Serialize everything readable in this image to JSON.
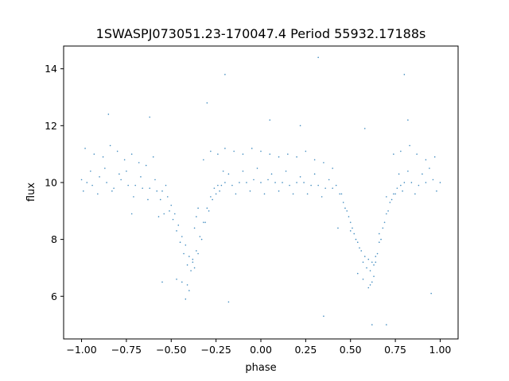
{
  "chart_data": {
    "type": "scatter",
    "title": "1SWASPJ073051.23-170047.4 Period 55932.17188s",
    "xlabel": "phase",
    "ylabel": "flux",
    "xlim": [
      -1.1,
      1.1
    ],
    "ylim": [
      4.5,
      14.8
    ],
    "xticks": [
      {
        "value": -1.0,
        "label": "−1.00"
      },
      {
        "value": -0.75,
        "label": "−0.75"
      },
      {
        "value": -0.5,
        "label": "−0.50"
      },
      {
        "value": -0.25,
        "label": "−0.25"
      },
      {
        "value": 0.0,
        "label": "0.00"
      },
      {
        "value": 0.25,
        "label": "0.25"
      },
      {
        "value": 0.5,
        "label": "0.50"
      },
      {
        "value": 0.75,
        "label": "0.75"
      },
      {
        "value": 1.0,
        "label": "1.00"
      }
    ],
    "yticks": [
      {
        "value": 6,
        "label": "6"
      },
      {
        "value": 8,
        "label": "8"
      },
      {
        "value": 10,
        "label": "10"
      },
      {
        "value": 12,
        "label": "12"
      },
      {
        "value": 14,
        "label": "14"
      }
    ],
    "grid": false,
    "marker_color": "#1f77b4",
    "series": [
      {
        "x": [
          -1.0,
          -0.97,
          -0.94,
          -0.9,
          -0.86,
          -0.82,
          -0.78,
          -0.74,
          -0.7,
          -0.66,
          -0.62,
          -0.58,
          -0.55,
          -0.52,
          -0.5,
          -0.48,
          -0.46,
          -0.44,
          -0.42,
          -0.4,
          -0.38,
          -0.36,
          -0.34,
          -0.32,
          -0.3,
          -0.28,
          -0.26,
          -0.24,
          -0.22,
          -0.2,
          -0.16,
          -0.12,
          -0.08,
          -0.04,
          0.0,
          0.04,
          0.08,
          0.12,
          0.16,
          0.2,
          0.24,
          0.28,
          0.32,
          0.36,
          0.4,
          0.44,
          0.46,
          0.48,
          0.5,
          0.52,
          0.54,
          0.56,
          0.58,
          0.6,
          0.62,
          0.64,
          0.66,
          0.68,
          0.7,
          0.72,
          0.74,
          0.76,
          0.78,
          0.8,
          0.84,
          0.88,
          0.92,
          0.96,
          1.0,
          -0.99,
          -0.95,
          -0.91,
          -0.87,
          -0.83,
          -0.79,
          -0.75,
          -0.71,
          -0.67,
          -0.63,
          -0.59,
          -0.56,
          -0.53,
          -0.51,
          -0.49,
          -0.47,
          -0.45,
          -0.43,
          -0.41,
          -0.39,
          -0.37,
          -0.35,
          -0.33,
          -0.31,
          -0.29,
          -0.27,
          -0.25,
          -0.23,
          -0.21,
          -0.18,
          -0.14,
          -0.1,
          -0.06,
          -0.02,
          0.02,
          0.06,
          0.1,
          0.14,
          0.18,
          0.22,
          0.26,
          0.3,
          0.34,
          0.38,
          0.42,
          0.45,
          0.47,
          0.49,
          0.51,
          0.53,
          0.55,
          0.57,
          0.59,
          0.61,
          0.63,
          0.65,
          0.67,
          0.69,
          0.71,
          0.73,
          0.75,
          0.77,
          0.79,
          0.82,
          0.86,
          0.9,
          0.94,
          0.98,
          -0.98,
          -0.93,
          -0.88,
          -0.84,
          -0.8,
          -0.76,
          -0.72,
          -0.68,
          -0.64,
          -0.6,
          -0.57,
          -0.54,
          -0.47,
          -0.44,
          -0.41,
          -0.4,
          -0.38,
          -0.37,
          -0.36,
          -0.35,
          -0.32,
          -0.28,
          -0.24,
          -0.2,
          -0.15,
          -0.1,
          -0.05,
          0.0,
          0.05,
          0.1,
          0.15,
          0.2,
          0.25,
          0.3,
          0.35,
          0.4,
          0.43,
          0.5,
          0.54,
          0.57,
          0.6,
          0.61,
          0.62,
          0.63,
          0.64,
          0.66,
          0.7,
          0.74,
          0.78,
          0.83,
          0.87,
          0.92,
          0.97,
          -0.85,
          -0.62,
          -0.55,
          -0.3,
          -0.18,
          0.05,
          0.22,
          0.35,
          0.58,
          0.7,
          0.82,
          0.95,
          -0.72,
          0.32,
          -0.2,
          0.8,
          -0.42,
          0.62
        ],
        "y": [
          10.1,
          10.0,
          9.9,
          10.2,
          10.0,
          9.8,
          10.1,
          9.9,
          9.9,
          9.8,
          9.8,
          9.7,
          9.7,
          9.5,
          9.2,
          8.9,
          8.5,
          8.1,
          7.8,
          7.4,
          7.3,
          7.6,
          8.1,
          8.6,
          9.1,
          9.5,
          9.8,
          9.9,
          9.9,
          10.0,
          9.9,
          10.0,
          10.0,
          10.1,
          10.0,
          10.1,
          10.0,
          10.0,
          9.9,
          10.0,
          10.0,
          9.9,
          9.9,
          9.8,
          9.8,
          9.6,
          9.3,
          9.0,
          8.6,
          8.2,
          7.9,
          7.6,
          7.4,
          7.3,
          7.2,
          7.4,
          7.9,
          8.4,
          8.9,
          9.3,
          9.6,
          9.8,
          9.9,
          10.0,
          10.0,
          9.9,
          10.0,
          10.1,
          10.0,
          9.7,
          10.4,
          9.6,
          10.5,
          9.7,
          10.3,
          10.4,
          9.5,
          10.2,
          9.4,
          10.1,
          9.4,
          9.9,
          9.0,
          8.7,
          8.3,
          7.9,
          7.5,
          7.1,
          6.9,
          7.0,
          7.5,
          8.0,
          8.6,
          9.0,
          9.4,
          9.6,
          9.7,
          10.4,
          10.3,
          9.6,
          10.4,
          9.7,
          10.5,
          9.6,
          10.3,
          9.7,
          10.4,
          9.6,
          10.2,
          9.6,
          10.3,
          9.5,
          10.1,
          9.9,
          9.6,
          9.1,
          8.8,
          8.4,
          8.0,
          7.7,
          7.2,
          7.0,
          6.9,
          7.1,
          7.5,
          8.0,
          8.6,
          9.0,
          9.4,
          9.6,
          10.3,
          9.7,
          10.4,
          9.6,
          10.3,
          10.5,
          9.7,
          11.2,
          11.0,
          10.9,
          11.3,
          11.1,
          10.8,
          11.0,
          10.7,
          10.6,
          10.9,
          8.8,
          8.9,
          6.6,
          6.5,
          6.4,
          6.2,
          7.2,
          8.4,
          8.8,
          9.1,
          10.8,
          11.1,
          11.0,
          11.2,
          11.1,
          11.0,
          11.2,
          11.1,
          11.0,
          10.9,
          11.0,
          10.9,
          11.1,
          10.8,
          10.7,
          10.5,
          8.4,
          8.3,
          6.8,
          6.6,
          6.3,
          6.4,
          6.5,
          6.7,
          7.2,
          8.2,
          9.5,
          11.0,
          11.1,
          11.3,
          11.0,
          10.8,
          10.9,
          12.4,
          12.3,
          6.5,
          12.8,
          5.8,
          12.2,
          12.0,
          5.3,
          11.9,
          5.0,
          12.2,
          6.1,
          8.9,
          14.4,
          13.8,
          13.8,
          5.9,
          5.0
        ]
      }
    ]
  }
}
